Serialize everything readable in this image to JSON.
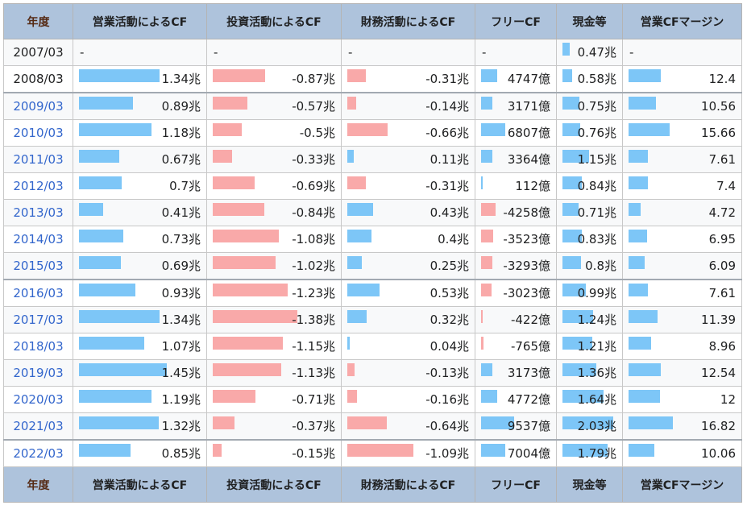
{
  "table": {
    "headers": [
      "年度",
      "営業活動によるCF",
      "投資活動によるCF",
      "財務活動によるCF",
      "フリーCF",
      "現金等",
      "営業CFマージン"
    ],
    "rows": [
      {
        "year": "2007/03",
        "link": false,
        "op": "-",
        "inv": "-",
        "fin": "-",
        "fcf": "-",
        "cash": "0.47兆",
        "margin": "-",
        "bars": {
          "op": null,
          "inv": null,
          "fin": null,
          "fcf": null,
          "cash": 0.13,
          "margin": null
        }
      },
      {
        "year": "2008/03",
        "link": false,
        "op": "1.34兆",
        "inv": "-0.87兆",
        "fin": "-0.31兆",
        "fcf": "4747億",
        "cash": "0.58兆",
        "margin": "12.4",
        "bars": {
          "op": 0.66,
          "inv": 0.43,
          "fin": 0.15,
          "fcf": 0.23,
          "cash": 0.18,
          "margin": 0.3
        }
      },
      {
        "year": "2009/03",
        "link": true,
        "op": "0.89兆",
        "inv": "-0.57兆",
        "fin": "-0.14兆",
        "fcf": "3171億",
        "cash": "0.75兆",
        "margin": "10.56",
        "bars": {
          "op": 0.44,
          "inv": 0.28,
          "fin": 0.07,
          "fcf": 0.16,
          "cash": 0.31,
          "margin": 0.25
        }
      },
      {
        "year": "2010/03",
        "link": true,
        "op": "1.18兆",
        "inv": "-0.5兆",
        "fin": "-0.66兆",
        "fcf": "6807億",
        "cash": "0.76兆",
        "margin": "15.66",
        "bars": {
          "op": 0.59,
          "inv": 0.24,
          "fin": 0.33,
          "fcf": 0.34,
          "cash": 0.32,
          "margin": 0.38
        }
      },
      {
        "year": "2011/03",
        "link": true,
        "op": "0.67兆",
        "inv": "-0.33兆",
        "fin": "0.11兆",
        "fcf": "3364億",
        "cash": "1.15兆",
        "margin": "7.61",
        "bars": {
          "op": 0.33,
          "inv": 0.16,
          "fin": 0.05,
          "fcf": 0.16,
          "cash": 0.49,
          "margin": 0.18
        }
      },
      {
        "year": "2012/03",
        "link": true,
        "op": "0.7兆",
        "inv": "-0.69兆",
        "fin": "-0.31兆",
        "fcf": "112億",
        "cash": "0.84兆",
        "margin": "7.4",
        "bars": {
          "op": 0.35,
          "inv": 0.34,
          "fin": 0.15,
          "fcf": 0.01,
          "cash": 0.36,
          "margin": 0.18
        }
      },
      {
        "year": "2013/03",
        "link": true,
        "op": "0.41兆",
        "inv": "-0.84兆",
        "fin": "0.43兆",
        "fcf": "-4258億",
        "cash": "0.71兆",
        "margin": "4.72",
        "bars": {
          "op": 0.2,
          "inv": 0.42,
          "fin": 0.21,
          "fcf": 0.21,
          "cash": 0.29,
          "margin": 0.11
        }
      },
      {
        "year": "2014/03",
        "link": true,
        "op": "0.73兆",
        "inv": "-1.08兆",
        "fin": "0.4兆",
        "fcf": "-3523億",
        "cash": "0.83兆",
        "margin": "6.95",
        "bars": {
          "op": 0.36,
          "inv": 0.54,
          "fin": 0.2,
          "fcf": 0.17,
          "cash": 0.35,
          "margin": 0.17
        }
      },
      {
        "year": "2015/03",
        "link": true,
        "op": "0.69兆",
        "inv": "-1.02兆",
        "fin": "0.25兆",
        "fcf": "-3293億",
        "cash": "0.8兆",
        "margin": "6.09",
        "bars": {
          "op": 0.34,
          "inv": 0.51,
          "fin": 0.12,
          "fcf": 0.16,
          "cash": 0.34,
          "margin": 0.15
        }
      },
      {
        "year": "2016/03",
        "link": true,
        "op": "0.93兆",
        "inv": "-1.23兆",
        "fin": "0.53兆",
        "fcf": "-3023億",
        "cash": "0.99兆",
        "margin": "7.61",
        "bars": {
          "op": 0.46,
          "inv": 0.61,
          "fin": 0.26,
          "fcf": 0.15,
          "cash": 0.42,
          "margin": 0.18
        }
      },
      {
        "year": "2017/03",
        "link": true,
        "op": "1.34兆",
        "inv": "-1.38兆",
        "fin": "0.32兆",
        "fcf": "-422億",
        "cash": "1.24兆",
        "margin": "11.39",
        "bars": {
          "op": 0.66,
          "inv": 0.69,
          "fin": 0.16,
          "fcf": 0.02,
          "cash": 0.56,
          "margin": 0.27
        }
      },
      {
        "year": "2018/03",
        "link": true,
        "op": "1.07兆",
        "inv": "-1.15兆",
        "fin": "0.04兆",
        "fcf": "-765億",
        "cash": "1.21兆",
        "margin": "8.96",
        "bars": {
          "op": 0.53,
          "inv": 0.57,
          "fin": 0.02,
          "fcf": 0.04,
          "cash": 0.55,
          "margin": 0.21
        }
      },
      {
        "year": "2019/03",
        "link": true,
        "op": "1.45兆",
        "inv": "-1.13兆",
        "fin": "-0.13兆",
        "fcf": "3173億",
        "cash": "1.36兆",
        "margin": "12.54",
        "bars": {
          "op": 0.72,
          "inv": 0.56,
          "fin": 0.06,
          "fcf": 0.16,
          "cash": 0.62,
          "margin": 0.3
        }
      },
      {
        "year": "2020/03",
        "link": true,
        "op": "1.19兆",
        "inv": "-0.71兆",
        "fin": "-0.16兆",
        "fcf": "4772億",
        "cash": "1.64兆",
        "margin": "12",
        "bars": {
          "op": 0.59,
          "inv": 0.35,
          "fin": 0.08,
          "fcf": 0.23,
          "cash": 0.75,
          "margin": 0.29
        }
      },
      {
        "year": "2021/03",
        "link": true,
        "op": "1.32兆",
        "inv": "-0.37兆",
        "fin": "-0.64兆",
        "fcf": "9537億",
        "cash": "2.03兆",
        "margin": "16.82",
        "bars": {
          "op": 0.65,
          "inv": 0.18,
          "fin": 0.32,
          "fcf": 0.47,
          "cash": 0.93,
          "margin": 0.41
        }
      },
      {
        "year": "2022/03",
        "link": true,
        "op": "0.85兆",
        "inv": "-0.15兆",
        "fin": "-1.09兆",
        "fcf": "7004億",
        "cash": "1.79兆",
        "margin": "10.06",
        "bars": {
          "op": 0.42,
          "inv": 0.07,
          "fin": 0.54,
          "fcf": 0.35,
          "cash": 0.82,
          "margin": 0.24
        }
      }
    ]
  },
  "colors": {
    "header_bg": "#aec3dc",
    "bar_positive": "#7dc6f7",
    "bar_negative": "#f9a9a9",
    "link": "#3366cc",
    "year_header_text": "#552a14"
  }
}
